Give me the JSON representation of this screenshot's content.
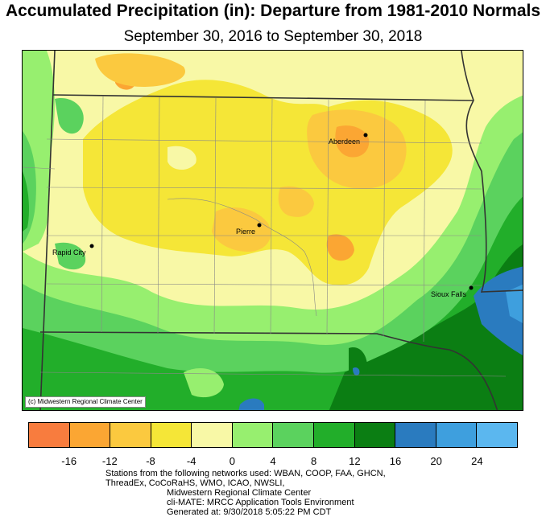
{
  "title": "Accumulated Precipitation (in): Departure from 1981-2010 Normals",
  "subtitle": "September 30, 2016 to September 30, 2018",
  "credit": "(c) Midwestern Regional Climate Center",
  "cities": [
    {
      "name": "Aberdeen"
    },
    {
      "name": "Pierre"
    },
    {
      "name": "Rapid City"
    },
    {
      "name": "Sioux Falls"
    }
  ],
  "legend": {
    "colors": [
      "#f87c3e",
      "#fba633",
      "#fbc93f",
      "#f5e637",
      "#f8f8a6",
      "#97ef6f",
      "#5bd25e",
      "#22ae2a",
      "#0b7e13",
      "#2a7bbf",
      "#3e9fde",
      "#5bb7ef"
    ],
    "ticks": [
      "-16",
      "-12",
      "-8",
      "-4",
      "0",
      "4",
      "8",
      "12",
      "16",
      "20",
      "24"
    ]
  },
  "footer": {
    "line1": "Stations from the following networks used: WBAN, COOP, FAA, GHCN,",
    "line2": "ThreadEx, CoCoRaHS, WMO, ICAO, NWSLI,",
    "line3": "Midwestern Regional Climate Center",
    "line4": "cli-MATE: MRCC Application Tools Environment",
    "line5": "Generated at: 9/30/2018 5:05:22 PM CDT"
  }
}
